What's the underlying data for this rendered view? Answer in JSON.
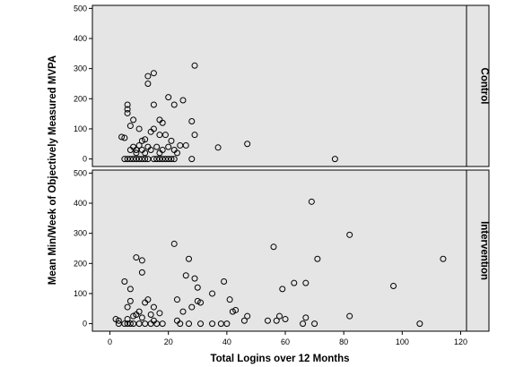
{
  "chart_data": {
    "type": "scatter",
    "xlabel": "Total Logins over 12 Months",
    "ylabel": "Mean Min/Week of Objectively Measured MVPA",
    "xlim": [
      -6,
      122
    ],
    "ylim": [
      -25,
      510
    ],
    "x_ticks": [
      0,
      20,
      40,
      60,
      80,
      100,
      120
    ],
    "y_ticks": [
      0,
      100,
      200,
      300,
      400,
      500
    ],
    "grid": false,
    "panel_background": "#e5e5e5",
    "marker": "open-circle",
    "panels": [
      {
        "label": "Control",
        "points": [
          [
            5,
            0
          ],
          [
            6,
            0
          ],
          [
            7,
            0
          ],
          [
            8,
            0
          ],
          [
            9,
            0
          ],
          [
            10,
            0
          ],
          [
            11,
            0
          ],
          [
            12,
            0
          ],
          [
            13,
            0
          ],
          [
            15,
            0
          ],
          [
            16,
            0
          ],
          [
            17,
            0
          ],
          [
            18,
            0
          ],
          [
            19,
            0
          ],
          [
            20,
            0
          ],
          [
            21,
            0
          ],
          [
            22,
            0
          ],
          [
            28,
            0
          ],
          [
            77,
            0
          ],
          [
            4,
            73
          ],
          [
            5,
            70
          ],
          [
            6,
            180
          ],
          [
            6,
            165
          ],
          [
            6,
            152
          ],
          [
            7,
            110
          ],
          [
            7,
            30
          ],
          [
            8,
            130
          ],
          [
            8,
            40
          ],
          [
            9,
            30
          ],
          [
            9,
            20
          ],
          [
            10,
            100
          ],
          [
            10,
            45
          ],
          [
            11,
            60
          ],
          [
            11,
            30
          ],
          [
            12,
            65
          ],
          [
            12,
            20
          ],
          [
            13,
            275
          ],
          [
            13,
            250
          ],
          [
            13,
            40
          ],
          [
            14,
            90
          ],
          [
            14,
            30
          ],
          [
            15,
            285
          ],
          [
            15,
            180
          ],
          [
            15,
            100
          ],
          [
            16,
            40
          ],
          [
            17,
            130
          ],
          [
            17,
            80
          ],
          [
            17,
            20
          ],
          [
            18,
            120
          ],
          [
            18,
            30
          ],
          [
            19,
            80
          ],
          [
            20,
            205
          ],
          [
            20,
            40
          ],
          [
            21,
            60
          ],
          [
            22,
            180
          ],
          [
            22,
            30
          ],
          [
            23,
            20
          ],
          [
            24,
            45
          ],
          [
            25,
            195
          ],
          [
            26,
            45
          ],
          [
            28,
            125
          ],
          [
            29,
            310
          ],
          [
            29,
            80
          ],
          [
            37,
            38
          ],
          [
            47,
            50
          ]
        ]
      },
      {
        "label": "Intervention",
        "points": [
          [
            2,
            15
          ],
          [
            3,
            10
          ],
          [
            3,
            0
          ],
          [
            5,
            140
          ],
          [
            5,
            0
          ],
          [
            6,
            55
          ],
          [
            6,
            15
          ],
          [
            6,
            0
          ],
          [
            7,
            115
          ],
          [
            7,
            75
          ],
          [
            7,
            0
          ],
          [
            8,
            25
          ],
          [
            8,
            0
          ],
          [
            9,
            220
          ],
          [
            9,
            30
          ],
          [
            10,
            0
          ],
          [
            10,
            40
          ],
          [
            11,
            210
          ],
          [
            11,
            170
          ],
          [
            11,
            20
          ],
          [
            12,
            70
          ],
          [
            12,
            0
          ],
          [
            13,
            80
          ],
          [
            14,
            30
          ],
          [
            14,
            0
          ],
          [
            15,
            55
          ],
          [
            15,
            10
          ],
          [
            16,
            0
          ],
          [
            17,
            35
          ],
          [
            18,
            0
          ],
          [
            22,
            265
          ],
          [
            23,
            80
          ],
          [
            23,
            10
          ],
          [
            24,
            0
          ],
          [
            25,
            40
          ],
          [
            26,
            160
          ],
          [
            27,
            215
          ],
          [
            27,
            0
          ],
          [
            28,
            55
          ],
          [
            29,
            150
          ],
          [
            30,
            120
          ],
          [
            30,
            75
          ],
          [
            31,
            70
          ],
          [
            31,
            0
          ],
          [
            35,
            100
          ],
          [
            35,
            0
          ],
          [
            38,
            0
          ],
          [
            39,
            140
          ],
          [
            40,
            0
          ],
          [
            41,
            80
          ],
          [
            42,
            40
          ],
          [
            43,
            45
          ],
          [
            46,
            10
          ],
          [
            47,
            25
          ],
          [
            54,
            10
          ],
          [
            56,
            255
          ],
          [
            57,
            10
          ],
          [
            58,
            25
          ],
          [
            59,
            115
          ],
          [
            60,
            15
          ],
          [
            63,
            135
          ],
          [
            66,
            0
          ],
          [
            67,
            135
          ],
          [
            67,
            20
          ],
          [
            69,
            405
          ],
          [
            70,
            0
          ],
          [
            71,
            215
          ],
          [
            82,
            295
          ],
          [
            82,
            25
          ],
          [
            97,
            125
          ],
          [
            106,
            0
          ],
          [
            114,
            215
          ]
        ]
      }
    ]
  }
}
